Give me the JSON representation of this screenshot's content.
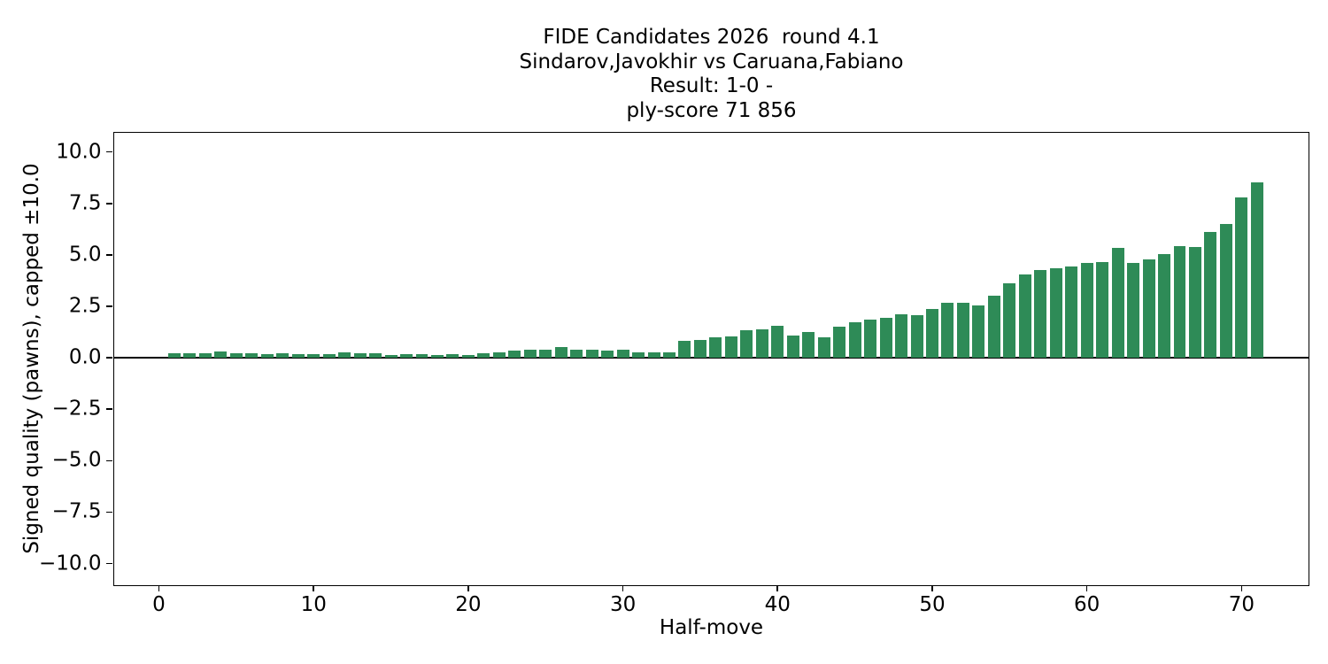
{
  "chart_data": {
    "type": "bar",
    "title_lines": [
      "FIDE Candidates 2026  round 4.1",
      "Sindarov,Javokhir vs Caruana,Fabiano",
      "Result: 1-0 -",
      "ply-score 71 856"
    ],
    "xlabel": "Half-move",
    "ylabel": "Signed quality (pawns), capped ±10.0",
    "bar_color": "#2e8b57",
    "axis_color": "#000000",
    "background_color": "#ffffff",
    "grid": false,
    "zero_line": true,
    "legend": "none",
    "xlim": [
      -2.92,
      74.3
    ],
    "ylim": [
      -11.03,
      10.95
    ],
    "bar_width_units": 0.8,
    "xticks": [
      0,
      10,
      20,
      30,
      40,
      50,
      60,
      70
    ],
    "xtick_labels": [
      "0",
      "10",
      "20",
      "30",
      "40",
      "50",
      "60",
      "70"
    ],
    "yticks": [
      10.0,
      7.5,
      5.0,
      2.5,
      0.0,
      -2.5,
      -5.0,
      -7.5,
      -10.0
    ],
    "ytick_labels": [
      "10.0",
      "7.5",
      "5.0",
      "2.5",
      "0.0",
      "−2.5",
      "−5.0",
      "−7.5",
      "−10.0"
    ],
    "x": [
      1,
      2,
      3,
      4,
      5,
      6,
      7,
      8,
      9,
      10,
      11,
      12,
      13,
      14,
      15,
      16,
      17,
      18,
      19,
      20,
      21,
      22,
      23,
      24,
      25,
      26,
      27,
      28,
      29,
      30,
      31,
      32,
      33,
      34,
      35,
      36,
      37,
      38,
      39,
      40,
      41,
      42,
      43,
      44,
      45,
      46,
      47,
      48,
      49,
      50,
      51,
      52,
      53,
      54,
      55,
      56,
      57,
      58,
      59,
      60,
      61,
      62,
      63,
      64,
      65,
      66,
      67,
      68,
      69,
      70,
      71
    ],
    "values": [
      0.22,
      0.22,
      0.22,
      0.29,
      0.23,
      0.22,
      0.19,
      0.22,
      0.17,
      0.18,
      0.19,
      0.28,
      0.23,
      0.23,
      0.13,
      0.17,
      0.17,
      0.13,
      0.17,
      0.13,
      0.23,
      0.25,
      0.33,
      0.41,
      0.41,
      0.5,
      0.37,
      0.37,
      0.34,
      0.41,
      0.26,
      0.26,
      0.28,
      0.83,
      0.85,
      1.01,
      1.04,
      1.33,
      1.4,
      1.55,
      1.09,
      1.27,
      1.01,
      1.5,
      1.73,
      1.86,
      1.95,
      2.13,
      2.06,
      2.37,
      2.66,
      2.66,
      2.55,
      3.03,
      3.62,
      4.05,
      4.26,
      4.36,
      4.43,
      4.62,
      4.65,
      5.34,
      4.59,
      4.76,
      5.05,
      5.41,
      5.38,
      6.11,
      6.51,
      7.77,
      8.51
    ]
  }
}
